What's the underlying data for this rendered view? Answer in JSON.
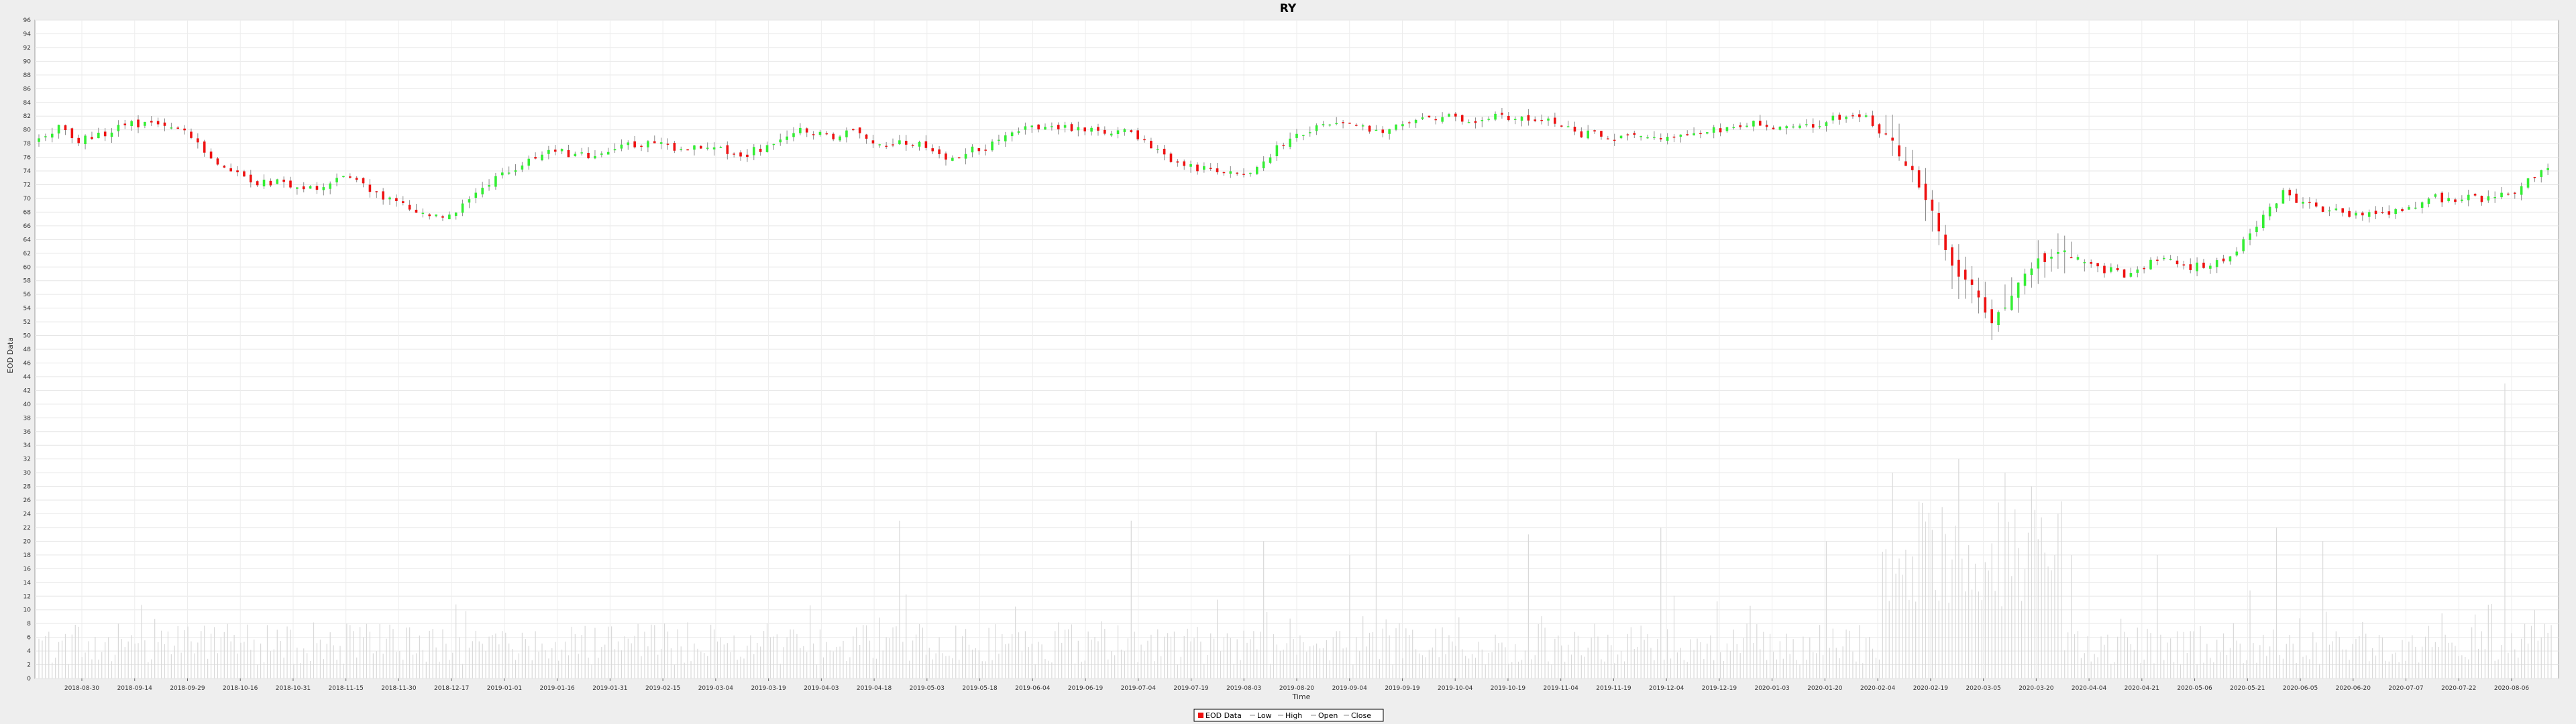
{
  "chart_data": {
    "type": "candlestick",
    "title": "RY",
    "xlabel": "Time",
    "ylabel": "EOD Data",
    "ylim": [
      0,
      96
    ],
    "y_ticks": [
      0,
      2,
      4,
      6,
      8,
      10,
      12,
      14,
      16,
      18,
      20,
      22,
      24,
      26,
      28,
      30,
      32,
      34,
      36,
      38,
      40,
      42,
      44,
      46,
      48,
      50,
      52,
      54,
      56,
      58,
      60,
      62,
      64,
      66,
      68,
      70,
      72,
      74,
      76,
      78,
      80,
      82,
      84,
      86,
      88,
      90,
      92,
      94,
      96
    ],
    "x_ticks": [
      "2018-08-30",
      "2018-09-14",
      "2018-09-29",
      "2018-10-16",
      "2018-10-31",
      "2018-11-15",
      "2018-11-30",
      "2018-12-17",
      "2019-01-01",
      "2019-01-16",
      "2019-01-31",
      "2019-02-15",
      "2019-03-04",
      "2019-03-19",
      "2019-04-03",
      "2019-04-18",
      "2019-05-03",
      "2019-05-18",
      "2019-06-04",
      "2019-06-19",
      "2019-07-04",
      "2019-07-19",
      "2019-08-03",
      "2019-08-20",
      "2019-09-04",
      "2019-09-19",
      "2019-10-04",
      "2019-10-19",
      "2019-11-04",
      "2019-11-19",
      "2019-12-04",
      "2019-12-19",
      "2020-01-03",
      "2020-01-20",
      "2020-02-04",
      "2020-02-19",
      "2020-03-05",
      "2020-03-20",
      "2020-04-04",
      "2020-04-21",
      "2020-05-06",
      "2020-05-21",
      "2020-06-05",
      "2020-06-20",
      "2020-07-07",
      "2020-07-22",
      "2020-08-06"
    ],
    "grid": true,
    "legend_position": "bottom-center",
    "legend": [
      "EOD Data",
      "Low",
      "High",
      "Open",
      "Close"
    ],
    "close_trend": [
      [
        0,
        78.5
      ],
      [
        6,
        80.5
      ],
      [
        12,
        78.5
      ],
      [
        20,
        79.5
      ],
      [
        28,
        81
      ],
      [
        36,
        80.5
      ],
      [
        44,
        79.5
      ],
      [
        50,
        77
      ],
      [
        58,
        74
      ],
      [
        66,
        72.5
      ],
      [
        76,
        72
      ],
      [
        86,
        71.5
      ],
      [
        94,
        73.5
      ],
      [
        100,
        71
      ],
      [
        108,
        69.5
      ],
      [
        114,
        68
      ],
      [
        122,
        67
      ],
      [
        130,
        70
      ],
      [
        138,
        73
      ],
      [
        146,
        75
      ],
      [
        156,
        77
      ],
      [
        166,
        76
      ],
      [
        176,
        77.5
      ],
      [
        186,
        78
      ],
      [
        196,
        77
      ],
      [
        204,
        78
      ],
      [
        210,
        76
      ],
      [
        220,
        77.5
      ],
      [
        230,
        80
      ],
      [
        238,
        79
      ],
      [
        246,
        79.5
      ],
      [
        256,
        78
      ],
      [
        266,
        78
      ],
      [
        274,
        76
      ],
      [
        286,
        77.5
      ],
      [
        298,
        80
      ],
      [
        310,
        80.5
      ],
      [
        322,
        80
      ],
      [
        330,
        79.5
      ],
      [
        340,
        76
      ],
      [
        348,
        74.5
      ],
      [
        356,
        74
      ],
      [
        366,
        74
      ],
      [
        376,
        78
      ],
      [
        386,
        80.5
      ],
      [
        396,
        81
      ],
      [
        404,
        79.5
      ],
      [
        414,
        81
      ],
      [
        424,
        82
      ],
      [
        434,
        81.5
      ],
      [
        446,
        82
      ],
      [
        456,
        81.5
      ],
      [
        466,
        79.5
      ],
      [
        476,
        79
      ],
      [
        486,
        79
      ],
      [
        496,
        79.5
      ],
      [
        506,
        80
      ],
      [
        516,
        81
      ],
      [
        526,
        80
      ],
      [
        532,
        80.5
      ],
      [
        542,
        81.5
      ],
      [
        552,
        82
      ],
      [
        560,
        78
      ],
      [
        566,
        74
      ],
      [
        572,
        68
      ],
      [
        578,
        60
      ],
      [
        584,
        57
      ],
      [
        590,
        52
      ],
      [
        596,
        56
      ],
      [
        604,
        61
      ],
      [
        612,
        62
      ],
      [
        620,
        60
      ],
      [
        630,
        59
      ],
      [
        640,
        61
      ],
      [
        650,
        60
      ],
      [
        660,
        60.5
      ],
      [
        670,
        66
      ],
      [
        678,
        71
      ],
      [
        684,
        69
      ],
      [
        692,
        68.5
      ],
      [
        702,
        67.5
      ],
      [
        712,
        68
      ],
      [
        722,
        70
      ],
      [
        732,
        70
      ],
      [
        742,
        70
      ],
      [
        750,
        71.5
      ],
      [
        756,
        74
      ]
    ],
    "volume_spikes": [
      [
        260,
        23
      ],
      [
        330,
        23
      ],
      [
        370,
        20
      ],
      [
        396,
        18
      ],
      [
        404,
        36
      ],
      [
        450,
        21
      ],
      [
        490,
        22
      ],
      [
        540,
        20
      ],
      [
        560,
        30
      ],
      [
        575,
        25
      ],
      [
        580,
        32
      ],
      [
        594,
        30
      ],
      [
        602,
        28
      ],
      [
        614,
        18
      ],
      [
        640,
        18
      ],
      [
        676,
        22
      ],
      [
        690,
        20
      ],
      [
        745,
        43
      ],
      [
        754,
        10
      ]
    ],
    "n_days": 760
  }
}
